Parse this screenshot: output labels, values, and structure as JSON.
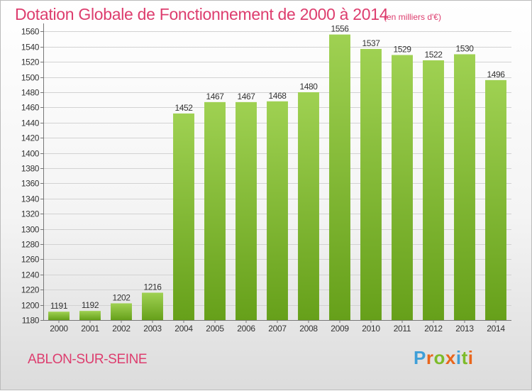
{
  "chart_data": {
    "type": "bar",
    "title": "Dotation Globale de Fonctionnement de 2000 à 2014",
    "subtitle": "(en milliers d'€)",
    "categories": [
      "2000",
      "2001",
      "2002",
      "2003",
      "2004",
      "2005",
      "2006",
      "2007",
      "2008",
      "2009",
      "2010",
      "2011",
      "2012",
      "2013",
      "2014"
    ],
    "values": [
      1191,
      1192,
      1202,
      1216,
      1452,
      1467,
      1467,
      1468,
      1480,
      1556,
      1537,
      1529,
      1522,
      1530,
      1496
    ],
    "yticks": [
      1180,
      1200,
      1220,
      1240,
      1260,
      1280,
      1300,
      1320,
      1340,
      1360,
      1380,
      1400,
      1420,
      1440,
      1460,
      1480,
      1500,
      1520,
      1540,
      1560
    ],
    "ylim": [
      1180,
      1565
    ],
    "grid": true,
    "colors": {
      "bar_top": "#9fd152",
      "bar_bottom": "#66a01a",
      "title": "#dd3d6e"
    }
  },
  "footer": {
    "city": "ABLON-SUR-SEINE",
    "logo_letters": [
      "P",
      "r",
      "o",
      "x",
      "i",
      "t",
      "i"
    ],
    "logo_colors": [
      "#3e9fd8",
      "#e9661c",
      "#7dbb2a",
      "#e9661c",
      "#3e9fd8",
      "#7dbb2a",
      "#e9661c"
    ]
  }
}
